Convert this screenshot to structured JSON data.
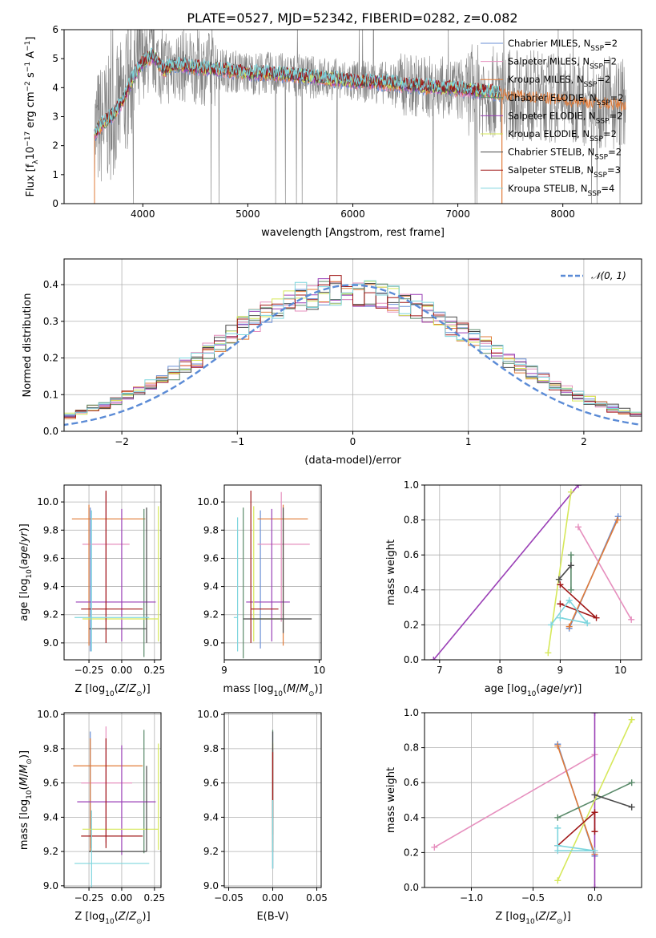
{
  "figure_title": "PLATE=0527, MJD=52342, FIBERID=0282, z=0.082",
  "colors": {
    "Chabrier MILES": "#6a8fd6",
    "Salpeter MILES": "#e68fbe",
    "Kroupa MILES": "#e07b39",
    "Chabrier ELODIE": "#5a8a6a",
    "Salpeter ELODIE": "#9a3fb6",
    "Kroupa ELODIE": "#d6e85a",
    "Chabrier STELIB": "#4a4a4a",
    "Salpeter STELIB": "#a01818",
    "Kroupa STELIB": "#7fd6de",
    "spectrum": "#808080",
    "normal_curve": "#5b8bd6"
  },
  "chart_data": [
    {
      "id": "spectrum",
      "type": "line",
      "title": "PLATE=0527, MJD=52342, FIBERID=0282, z=0.082",
      "xlabel": "wavelength [Angstrom, rest frame]",
      "ylabel": "Flux [f_λ10^-17 erg cm^-2 s^-1 A^-1]",
      "xlim": [
        3250,
        8750
      ],
      "ylim": [
        0,
        6
      ],
      "xticks": [
        "4000",
        "5000",
        "6000",
        "7000",
        "8000"
      ],
      "yticks": [
        "0",
        "1",
        "2",
        "3",
        "4",
        "5",
        "6"
      ],
      "grid": false,
      "legend_position": "upper-right",
      "legend": [
        "Chabrier MILES, N_SSP=2",
        "Salpeter MILES, N_SSP=2",
        "Kroupa MILES, N_SSP=2",
        "Chabrier ELODIE, N_SSP=2",
        "Salpeter ELODIE, N_SSP=2",
        "Kroupa ELODIE, N_SSP=2",
        "Chabrier STELIB, N_SSP=2",
        "Salpeter STELIB, N_SSP=3",
        "Kroupa STELIB, N_SSP=4"
      ],
      "observed_range": [
        3540,
        8600
      ],
      "model_envelope": {
        "x": [
          3540,
          3600,
          3700,
          3800,
          3900,
          4000,
          4100,
          4200,
          4300,
          4500,
          4800,
          5000,
          5200,
          5500,
          5800,
          6000,
          6200,
          6500,
          6800,
          7000,
          7200,
          7400
        ],
        "y": [
          2.4,
          2.7,
          3.0,
          3.5,
          4.3,
          4.9,
          5.1,
          4.6,
          4.8,
          4.7,
          4.6,
          4.5,
          4.5,
          4.4,
          4.3,
          4.2,
          4.2,
          4.1,
          4.0,
          3.95,
          3.9,
          3.8
        ]
      },
      "kroupa_miles_end": 8600
    },
    {
      "id": "residuals",
      "type": "histogram",
      "xlabel": "(data-model)/error",
      "ylabel": "Normed distribution",
      "xlim": [
        -2.5,
        2.5
      ],
      "ylim": [
        0,
        0.47
      ],
      "xticks": [
        "−2",
        "−1",
        "0",
        "1",
        "2"
      ],
      "yticks": [
        "0.0",
        "0.1",
        "0.2",
        "0.3",
        "0.4"
      ],
      "grid": true,
      "legend": [
        "𝒩(0, 1)"
      ],
      "legend_position": "upper-right",
      "bin_width": 0.1,
      "base_envelope": [
        0.018,
        0.022,
        0.026,
        0.031,
        0.037,
        0.044,
        0.052,
        0.061,
        0.071,
        0.083,
        0.096,
        0.11,
        0.126,
        0.143,
        0.161,
        0.18,
        0.2,
        0.221,
        0.242,
        0.263,
        0.283,
        0.303,
        0.321,
        0.337,
        0.351,
        0.363,
        0.372,
        0.378,
        0.381,
        0.382,
        0.381,
        0.378,
        0.372,
        0.363,
        0.352,
        0.339,
        0.324,
        0.308,
        0.29,
        0.272,
        0.253,
        0.234,
        0.215,
        0.196,
        0.178,
        0.16,
        0.143,
        0.127,
        0.112,
        0.098,
        0.085,
        0.073,
        0.063,
        0.053,
        0.045,
        0.038,
        0.032,
        0.027,
        0.023,
        0.02
      ]
    },
    {
      "id": "age-vs-Z",
      "type": "errorbar",
      "xlabel": "Z [log10(Z/Z⊙)]",
      "ylabel": "age  [log10(age/yr)]",
      "xlim": [
        -0.44,
        0.3
      ],
      "ylim": [
        8.88,
        10.12
      ],
      "xticks": [
        "−0.25",
        "0.00",
        "0.25"
      ],
      "yticks": [
        "9.0",
        "9.2",
        "9.4",
        "9.6",
        "9.8",
        "10.0"
      ],
      "grid": true,
      "points": [
        {
          "model": "Chabrier MILES",
          "x": -0.24,
          "y": 9.36,
          "xerr": [
            0.0,
            0.0
          ],
          "yerr": [
            0.42,
            0.6
          ]
        },
        {
          "model": "Salpeter MILES",
          "x": -0.12,
          "y": 9.7,
          "xerr": [
            0.18,
            0.18
          ],
          "yerr": [
            0.55,
            0.37
          ]
        },
        {
          "model": "Kroupa MILES",
          "x": -0.25,
          "y": 9.88,
          "xerr": [
            0.13,
            0.43
          ],
          "yerr": [
            0.9,
            0.1
          ]
        },
        {
          "model": "Chabrier ELODIE",
          "x": 0.17,
          "y": 9.18,
          "xerr": [
            0.0,
            0.0
          ],
          "yerr": [
            0.28,
            0.77
          ]
        },
        {
          "model": "Salpeter ELODIE",
          "x": 0.0,
          "y": 9.29,
          "xerr": [
            0.35,
            0.26
          ],
          "yerr": [
            0.28,
            0.66
          ]
        },
        {
          "model": "Kroupa ELODIE",
          "x": 0.28,
          "y": 9.17,
          "xerr": [
            0.58,
            0.0
          ],
          "yerr": [
            0.16,
            0.8
          ]
        },
        {
          "model": "Chabrier STELIB",
          "x": 0.19,
          "y": 9.1,
          "xerr": [
            0.44,
            0.0
          ],
          "yerr": [
            0.1,
            0.86
          ]
        },
        {
          "model": "Salpeter STELIB",
          "x": -0.12,
          "y": 9.24,
          "xerr": [
            0.19,
            0.28
          ],
          "yerr": [
            0.24,
            0.84
          ]
        },
        {
          "model": "Kroupa STELIB",
          "x": -0.23,
          "y": 9.18,
          "xerr": [
            0.13,
            0.44
          ],
          "yerr": [
            0.24,
            0.76
          ]
        }
      ]
    },
    {
      "id": "age-vs-mass",
      "type": "errorbar",
      "xlabel": "mass [log10(M/M⊙)]",
      "ylabel": "",
      "xlim": [
        9.0,
        10.02
      ],
      "ylim": [
        8.88,
        10.12
      ],
      "xticks": [
        "9",
        "10"
      ],
      "yticks": [
        "9.0",
        "9.2",
        "9.4",
        "9.6",
        "9.8",
        "10.0"
      ],
      "grid": true,
      "points": [
        {
          "model": "Chabrier MILES",
          "x": 9.38,
          "y": 9.34,
          "xerr": [
            0.0,
            0.0
          ],
          "yerr": [
            0.38,
            0.6
          ]
        },
        {
          "model": "Salpeter MILES",
          "x": 9.6,
          "y": 9.7,
          "xerr": [
            0.25,
            0.3
          ],
          "yerr": [
            0.55,
            0.37
          ]
        },
        {
          "model": "Kroupa MILES",
          "x": 9.62,
          "y": 9.88,
          "xerr": [
            0.27,
            0.26
          ],
          "yerr": [
            0.9,
            0.1
          ]
        },
        {
          "model": "Chabrier ELODIE",
          "x": 9.2,
          "y": 9.17,
          "xerr": [
            0.0,
            0.0
          ],
          "yerr": [
            0.28,
            0.79
          ]
        },
        {
          "model": "Salpeter ELODIE",
          "x": 9.5,
          "y": 9.29,
          "xerr": [
            0.27,
            0.19
          ],
          "yerr": [
            0.28,
            0.66
          ]
        },
        {
          "model": "Kroupa ELODIE",
          "x": 9.31,
          "y": 9.17,
          "xerr": [
            0.0,
            0.27
          ],
          "yerr": [
            0.16,
            0.8
          ]
        },
        {
          "model": "Chabrier STELIB",
          "x": 9.62,
          "y": 9.17,
          "xerr": [
            0.42,
            0.3
          ],
          "yerr": [
            0.1,
            0.79
          ]
        },
        {
          "model": "Salpeter STELIB",
          "x": 9.28,
          "y": 9.24,
          "xerr": [
            0.0,
            0.29
          ],
          "yerr": [
            0.24,
            0.84
          ]
        },
        {
          "model": "Kroupa STELIB",
          "x": 9.14,
          "y": 9.18,
          "xerr": [
            0.04,
            0.0
          ],
          "yerr": [
            0.24,
            0.71
          ]
        }
      ]
    },
    {
      "id": "weight-vs-age",
      "type": "line",
      "xlabel": "age  [log10(age/yr)]",
      "ylabel": "mass weight",
      "xlim": [
        6.75,
        10.35
      ],
      "ylim": [
        0,
        1.0
      ],
      "xticks": [
        "7",
        "8",
        "9",
        "10"
      ],
      "yticks": [
        "0.0",
        "0.2",
        "0.4",
        "0.6",
        "0.8",
        "1.0"
      ],
      "grid": true,
      "series": [
        {
          "model": "Chabrier MILES",
          "x": [
            9.15,
            9.96
          ],
          "y": [
            0.18,
            0.82
          ]
        },
        {
          "model": "Salpeter MILES",
          "x": [
            9.3,
            10.18
          ],
          "y": [
            0.76,
            0.23
          ]
        },
        {
          "model": "Kroupa MILES",
          "x": [
            9.15,
            9.95
          ],
          "y": [
            0.19,
            0.8
          ]
        },
        {
          "model": "Chabrier ELODIE",
          "x": [
            9.18,
            9.18
          ],
          "y": [
            0.4,
            0.6
          ]
        },
        {
          "model": "Salpeter ELODIE",
          "x": [
            6.9,
            9.3
          ],
          "y": [
            0.0,
            1.0
          ]
        },
        {
          "model": "Kroupa ELODIE",
          "x": [
            8.8,
            9.18
          ],
          "y": [
            0.04,
            0.96
          ]
        },
        {
          "model": "Chabrier STELIB",
          "x": [
            8.98,
            9.18
          ],
          "y": [
            0.46,
            0.54
          ]
        },
        {
          "model": "Salpeter STELIB",
          "x": [
            9.0,
            9.6,
            9.0
          ],
          "y": [
            0.32,
            0.24,
            0.43
          ]
        },
        {
          "model": "Kroupa STELIB",
          "x": [
            8.85,
            9.15,
            9.45,
            9.0
          ],
          "y": [
            0.2,
            0.34,
            0.21,
            0.24
          ]
        }
      ]
    },
    {
      "id": "mass-vs-Z",
      "type": "errorbar",
      "xlabel": "Z [log10(Z/Z⊙)]",
      "ylabel": "mass [log10(M/M⊙)]",
      "xlim": [
        -0.44,
        0.3
      ],
      "ylim": [
        8.99,
        10.01
      ],
      "xticks": [
        "−0.25",
        "0.00",
        "0.25"
      ],
      "yticks": [
        "9.0",
        "9.2",
        "9.4",
        "9.6",
        "9.8",
        "10.0"
      ],
      "grid": true,
      "points": [
        {
          "model": "Chabrier MILES",
          "x": -0.24,
          "y": 9.4,
          "xerr": [
            0.0,
            0.0
          ],
          "yerr": [
            0.18,
            0.5
          ]
        },
        {
          "model": "Salpeter MILES",
          "x": -0.12,
          "y": 9.6,
          "xerr": [
            0.19,
            0.2
          ],
          "yerr": [
            0.35,
            0.33
          ]
        },
        {
          "model": "Kroupa MILES",
          "x": -0.24,
          "y": 9.7,
          "xerr": [
            0.13,
            0.4
          ],
          "yerr": [
            0.5,
            0.16
          ]
        },
        {
          "model": "Chabrier ELODIE",
          "x": 0.17,
          "y": 9.26,
          "xerr": [
            0.0,
            0.0
          ],
          "yerr": [
            0.07,
            0.65
          ]
        },
        {
          "model": "Salpeter ELODIE",
          "x": 0.0,
          "y": 9.49,
          "xerr": [
            0.34,
            0.26
          ],
          "yerr": [
            0.31,
            0.33
          ]
        },
        {
          "model": "Kroupa ELODIE",
          "x": 0.28,
          "y": 9.33,
          "xerr": [
            0.58,
            0.0
          ],
          "yerr": [
            0.12,
            0.5
          ]
        },
        {
          "model": "Chabrier STELIB",
          "x": 0.19,
          "y": 9.2,
          "xerr": [
            0.44,
            0.0
          ],
          "yerr": [
            0.0,
            0.5
          ]
        },
        {
          "model": "Salpeter STELIB",
          "x": -0.12,
          "y": 9.29,
          "xerr": [
            0.19,
            0.28
          ],
          "yerr": [
            0.07,
            0.57
          ]
        },
        {
          "model": "Kroupa STELIB",
          "x": -0.23,
          "y": 9.13,
          "xerr": [
            0.13,
            0.44
          ],
          "yerr": [
            0.2,
            0.31
          ]
        }
      ]
    },
    {
      "id": "mass-vs-EBV",
      "type": "errorbar",
      "xlabel": "E(B-V)",
      "ylabel": "",
      "xlim": [
        -0.055,
        0.055
      ],
      "ylim": [
        8.99,
        10.01
      ],
      "xticks": [
        "−0.05",
        "0.00",
        "0.05"
      ],
      "yticks": [
        "9.0",
        "9.2",
        "9.4",
        "9.6",
        "9.8",
        "10.0"
      ],
      "grid": true,
      "points": [
        {
          "model": "Chabrier MILES",
          "x": 0.0,
          "y": 9.4,
          "xerr": [
            0,
            0
          ],
          "yerr": [
            0.3,
            0.5
          ]
        },
        {
          "model": "Salpeter MILES",
          "x": 0.0,
          "y": 9.5,
          "xerr": [
            0,
            0
          ],
          "yerr": [
            0.25,
            0.3
          ]
        },
        {
          "model": "Kroupa MILES",
          "x": 0.0,
          "y": 9.7,
          "xerr": [
            0,
            0
          ],
          "yerr": [
            0.5,
            0.13
          ]
        },
        {
          "model": "Chabrier ELODIE",
          "x": 0.0,
          "y": 9.5,
          "xerr": [
            0,
            0
          ],
          "yerr": [
            0.3,
            0.41
          ]
        },
        {
          "model": "Salpeter ELODIE",
          "x": 0.0,
          "y": 9.5,
          "xerr": [
            0,
            0
          ],
          "yerr": [
            0.2,
            0.3
          ]
        },
        {
          "model": "Kroupa ELODIE",
          "x": 0.0,
          "y": 9.4,
          "xerr": [
            0,
            0
          ],
          "yerr": [
            0.1,
            0.44
          ]
        },
        {
          "model": "Chabrier STELIB",
          "x": 0.0,
          "y": 9.3,
          "xerr": [
            0,
            0
          ],
          "yerr": [
            0.2,
            0.6
          ]
        },
        {
          "model": "Salpeter STELIB",
          "x": 0.0,
          "y": 9.6,
          "xerr": [
            0,
            0
          ],
          "yerr": [
            0.2,
            0.18
          ]
        },
        {
          "model": "Kroupa STELIB",
          "x": 0.0,
          "y": 9.2,
          "xerr": [
            0,
            0
          ],
          "yerr": [
            0.1,
            0.3
          ]
        }
      ]
    },
    {
      "id": "weight-vs-Z",
      "type": "line",
      "xlabel": "Z [log10(Z/Z⊙)]",
      "ylabel": "mass weight",
      "xlim": [
        -1.38,
        0.38
      ],
      "ylim": [
        0,
        1.0
      ],
      "xticks": [
        "−1.0",
        "−0.5",
        "0.0"
      ],
      "yticks": [
        "0.0",
        "0.2",
        "0.4",
        "0.6",
        "0.8",
        "1.0"
      ],
      "grid": true,
      "series": [
        {
          "model": "Chabrier MILES",
          "x": [
            -0.3,
            0.0
          ],
          "y": [
            0.82,
            0.18
          ]
        },
        {
          "model": "Salpeter MILES",
          "x": [
            -1.3,
            0.0
          ],
          "y": [
            0.23,
            0.76
          ]
        },
        {
          "model": "Kroupa MILES",
          "x": [
            -0.3,
            0.0
          ],
          "y": [
            0.81,
            0.19
          ]
        },
        {
          "model": "Chabrier ELODIE",
          "x": [
            -0.3,
            0.3
          ],
          "y": [
            0.4,
            0.6
          ]
        },
        {
          "model": "Salpeter ELODIE",
          "x": [
            0.0,
            0.0
          ],
          "y": [
            0.0,
            1.0
          ]
        },
        {
          "model": "Kroupa ELODIE",
          "x": [
            -0.3,
            0.3
          ],
          "y": [
            0.04,
            0.96
          ]
        },
        {
          "model": "Chabrier STELIB",
          "x": [
            0.0,
            0.3
          ],
          "y": [
            0.53,
            0.46
          ]
        },
        {
          "model": "Salpeter STELIB",
          "x": [
            -0.3,
            0.0,
            0.0
          ],
          "y": [
            0.24,
            0.43,
            0.32
          ]
        },
        {
          "model": "Kroupa STELIB",
          "x": [
            -0.3,
            -0.3,
            0.0,
            -0.3
          ],
          "y": [
            0.34,
            0.21,
            0.21,
            0.24
          ]
        }
      ]
    }
  ]
}
